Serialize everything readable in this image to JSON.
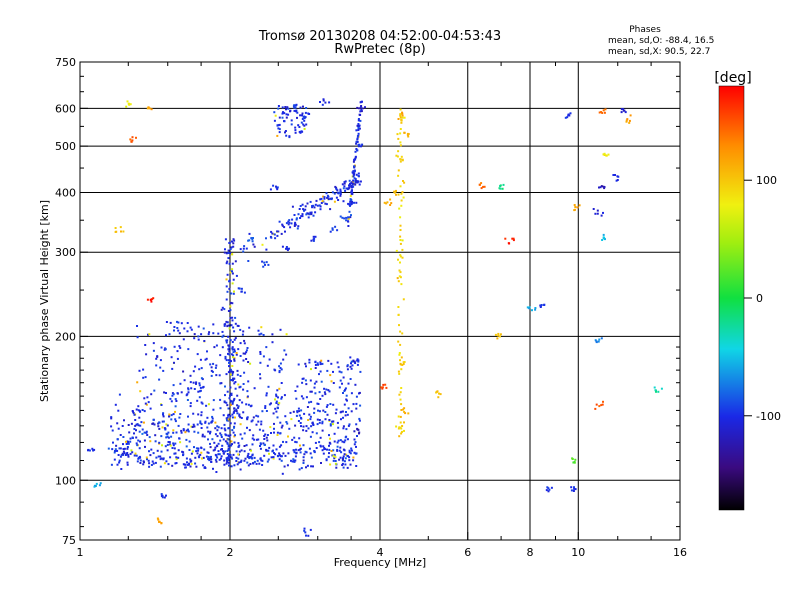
{
  "chart_data": {
    "type": "scatter",
    "title": "Tromsø 20130208 04:52:00-04:53:43",
    "subtitle": "RwPretec (8p)",
    "xlabel": "Frequency [MHz]",
    "ylabel": "Stationary phase Virtual Height [km]",
    "x_scale": "log2",
    "y_scale": "log",
    "xlim": [
      1,
      16
    ],
    "ylim": [
      75,
      750
    ],
    "grid": true,
    "x_ticks": [
      1,
      2,
      4,
      6,
      8,
      10,
      16
    ],
    "x_tick_labels": [
      "1",
      "2",
      "4",
      "6",
      "8",
      "10",
      "16"
    ],
    "x_minor_ticks": [
      1.25,
      1.5,
      1.75,
      2.5,
      3,
      3.5,
      5,
      7,
      9,
      12,
      14
    ],
    "y_ticks": [
      75,
      100,
      200,
      300,
      400,
      500,
      600,
      750
    ],
    "y_tick_labels": [
      "75",
      "100",
      "200",
      "300",
      "400",
      "500",
      "600",
      "750"
    ],
    "y_minor_ticks": [
      80,
      90,
      110,
      120,
      130,
      140,
      150,
      160,
      170,
      180,
      190,
      250,
      350,
      450,
      550,
      650,
      700
    ],
    "legend": {
      "title": "Phases",
      "lines": [
        "mean, sd,O: -88.4, 16.5",
        "mean, sd,X:  90.5, 22.7"
      ],
      "placement": "top-right"
    },
    "colorbar": {
      "label": "[deg]",
      "range": [
        -180,
        180
      ],
      "ticks": [
        100,
        0,
        -100
      ],
      "tick_labels": [
        "100",
        "0",
        "-100"
      ]
    },
    "series": [
      {
        "name": "O",
        "color": "#1a28e6",
        "point_count": 1400
      },
      {
        "name": "X",
        "color": "#f0c010"
      }
    ],
    "points": [
      [
        1.08,
        97,
        -60
      ],
      [
        1.05,
        115,
        -100
      ],
      [
        1.17,
        115,
        -90
      ],
      [
        1.23,
        113,
        -105
      ],
      [
        1.25,
        120,
        -95
      ],
      [
        1.34,
        126,
        -85
      ],
      [
        1.42,
        130,
        -110
      ],
      [
        1.5,
        124,
        -90
      ],
      [
        1.64,
        108,
        -100
      ],
      [
        1.81,
        112,
        -95
      ],
      [
        1.98,
        110,
        -100
      ],
      [
        2.2,
        112,
        -90
      ],
      [
        2.53,
        113,
        -105
      ],
      [
        2.74,
        115,
        -95
      ],
      [
        3.05,
        118,
        -100
      ],
      [
        3.38,
        122,
        -95
      ],
      [
        3.62,
        127,
        -120
      ],
      [
        1.3,
        140,
        -100
      ],
      [
        1.54,
        150,
        -95
      ],
      [
        1.76,
        156,
        -90
      ],
      [
        2.02,
        163,
        -100
      ],
      [
        2.52,
        170,
        -90
      ],
      [
        3.04,
        176,
        -100
      ],
      [
        3.55,
        178,
        -110
      ],
      [
        2.1,
        250,
        -95
      ],
      [
        2.34,
        283,
        -90
      ],
      [
        2.62,
        306,
        -100
      ],
      [
        2.95,
        320,
        -100
      ],
      [
        3.2,
        335,
        -95
      ],
      [
        3.4,
        355,
        -90
      ],
      [
        3.52,
        380,
        -100
      ],
      [
        3.6,
        420,
        -100
      ],
      [
        3.65,
        500,
        -100
      ],
      [
        3.67,
        600,
        -120
      ],
      [
        2.48,
        550,
        -95
      ],
      [
        2.7,
        600,
        -90
      ],
      [
        2.85,
        580,
        -100
      ],
      [
        3.1,
        615,
        -100
      ],
      [
        2.2,
        320,
        -85
      ],
      [
        2.45,
        410,
        -100
      ],
      [
        4.4,
        580,
        115
      ],
      [
        4.5,
        530,
        110
      ],
      [
        4.4,
        470,
        100
      ],
      [
        4.3,
        400,
        105
      ],
      [
        4.15,
        380,
        110
      ],
      [
        4.45,
        175,
        100
      ],
      [
        4.5,
        140,
        110
      ],
      [
        4.4,
        128,
        90
      ],
      [
        1.25,
        610,
        80
      ],
      [
        1.27,
        520,
        150
      ],
      [
        1.38,
        600,
        120
      ],
      [
        1.2,
        335,
        100
      ],
      [
        1.38,
        240,
        170
      ],
      [
        1.44,
        82,
        120
      ],
      [
        1.47,
        92,
        -100
      ],
      [
        2.84,
        78,
        -100
      ],
      [
        7.0,
        410,
        -20
      ],
      [
        7.3,
        318,
        170
      ],
      [
        8.1,
        230,
        -60
      ],
      [
        8.5,
        232,
        -100
      ],
      [
        8.7,
        96,
        -100
      ],
      [
        9.7,
        96,
        -100
      ],
      [
        9.6,
        580,
        -100
      ],
      [
        9.9,
        372,
        120
      ],
      [
        11.2,
        590,
        140
      ],
      [
        11.3,
        480,
        80
      ],
      [
        11.1,
        410,
        -120
      ],
      [
        11.0,
        362,
        -110
      ],
      [
        11.2,
        322,
        -50
      ],
      [
        12.4,
        590,
        -110
      ],
      [
        12.0,
        428,
        -100
      ],
      [
        11.0,
        143,
        150
      ],
      [
        14.5,
        155,
        -30
      ],
      [
        9.8,
        109,
        20
      ],
      [
        10.9,
        197,
        -70
      ],
      [
        12.5,
        570,
        120
      ],
      [
        6.4,
        412,
        140
      ],
      [
        6.9,
        200,
        100
      ],
      [
        5.2,
        151,
        100
      ],
      [
        4.05,
        158,
        160
      ]
    ]
  }
}
